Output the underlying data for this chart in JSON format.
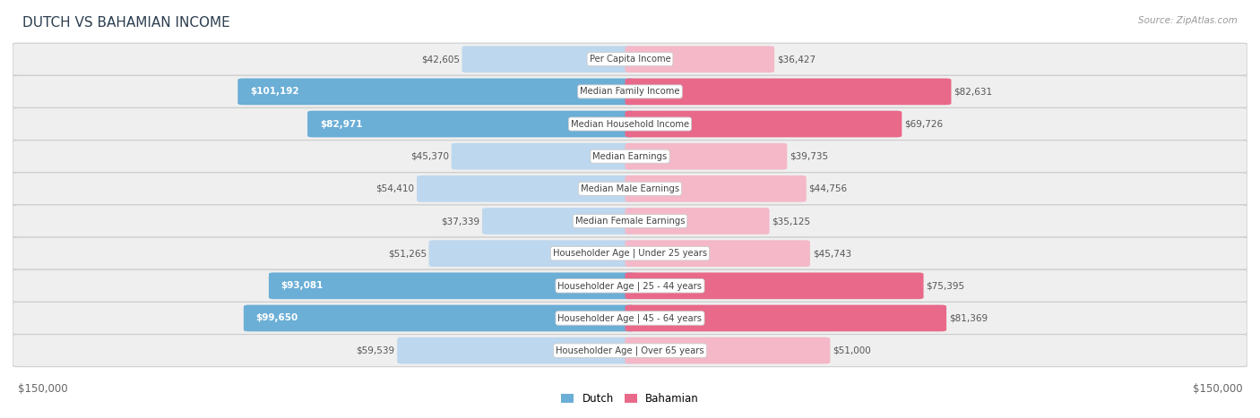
{
  "title": "DUTCH VS BAHAMIAN INCOME",
  "source": "Source: ZipAtlas.com",
  "categories": [
    "Per Capita Income",
    "Median Family Income",
    "Median Household Income",
    "Median Earnings",
    "Median Male Earnings",
    "Median Female Earnings",
    "Householder Age | Under 25 years",
    "Householder Age | 25 - 44 years",
    "Householder Age | 45 - 64 years",
    "Householder Age | Over 65 years"
  ],
  "dutch_values": [
    42605,
    101192,
    82971,
    45370,
    54410,
    37339,
    51265,
    93081,
    99650,
    59539
  ],
  "bahamian_values": [
    36427,
    82631,
    69726,
    39735,
    44756,
    35125,
    45743,
    75395,
    81369,
    51000
  ],
  "dutch_labels": [
    "$42,605",
    "$101,192",
    "$82,971",
    "$45,370",
    "$54,410",
    "$37,339",
    "$51,265",
    "$93,081",
    "$99,650",
    "$59,539"
  ],
  "bahamian_labels": [
    "$36,427",
    "$82,631",
    "$69,726",
    "$39,735",
    "$44,756",
    "$35,125",
    "$45,743",
    "$75,395",
    "$81,369",
    "$51,000"
  ],
  "dutch_strong_indices": [
    1,
    2,
    7,
    8
  ],
  "bahamian_strong_indices": [
    1,
    2,
    7,
    8
  ],
  "dutch_color_strong": "#6baed6",
  "dutch_color_light": "#bdd7ee",
  "bahamian_color_strong": "#e8698a",
  "bahamian_color_light": "#f4b8c8",
  "max_value": 150000,
  "bg_color": "#ffffff",
  "row_bg": "#efefef",
  "label_color_dark": "#555555",
  "label_color_white": "#ffffff"
}
